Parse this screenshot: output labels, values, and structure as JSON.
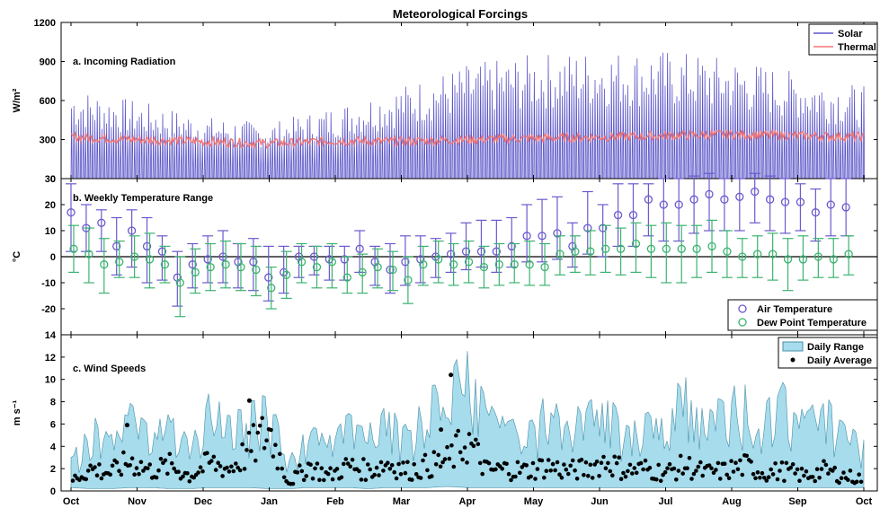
{
  "figure_title": "Meteorological Forcings",
  "months": [
    "Oct",
    "Nov",
    "Dec",
    "Jan",
    "Feb",
    "Mar",
    "Apr",
    "May",
    "Jun",
    "Jul",
    "Aug",
    "Sep",
    "Oct"
  ],
  "chart_data": [
    {
      "type": "line",
      "panel_label": "a. Incoming Radiation",
      "ylabel": "W/m²",
      "ylim": [
        0,
        1200
      ],
      "yticks": [
        0,
        300,
        600,
        900,
        1200
      ],
      "grid": false,
      "legend_position": "top-right",
      "x_unit": "month index (0 = Oct 1, 12 = Oct 1 next year)",
      "series": [
        {
          "name": "Solar",
          "color": "#5b55c8",
          "daily_peak": {
            "x": [
              0,
              1,
              2,
              3,
              4,
              5,
              6,
              7,
              8,
              9,
              10,
              11,
              12
            ],
            "y": [
              700,
              600,
              480,
              430,
              560,
              720,
              880,
              960,
              990,
              990,
              930,
              820,
              710
            ]
          }
        },
        {
          "name": "Thermal",
          "color": "#f27575",
          "daily_mean": {
            "x": [
              0,
              1,
              2,
              3,
              4,
              5,
              6,
              7,
              8,
              9,
              10,
              11,
              12
            ],
            "y": [
              320,
              300,
              285,
              270,
              290,
              285,
              300,
              310,
              320,
              330,
              340,
              330,
              320
            ]
          }
        }
      ]
    },
    {
      "type": "scatter",
      "panel_label": "b. Weekly Temperature Range",
      "ylabel": "°C",
      "ylim": [
        -30,
        30
      ],
      "yticks": [
        -20,
        -10,
        0,
        10,
        20,
        30
      ],
      "zero_line": true,
      "legend_position": "bottom-right",
      "series": [
        {
          "name": "Air Temperature",
          "color": "#6a5acd",
          "x": [
            0,
            0.23,
            0.46,
            0.69,
            0.92,
            1.15,
            1.38,
            1.61,
            1.84,
            2.07,
            2.3,
            2.53,
            2.76,
            2.99,
            3.22,
            3.45,
            3.68,
            3.91,
            4.14,
            4.37,
            4.6,
            4.83,
            5.06,
            5.29,
            5.52,
            5.75,
            5.98,
            6.21,
            6.44,
            6.67,
            6.9,
            7.13,
            7.36,
            7.59,
            7.82,
            8.05,
            8.28,
            8.51,
            8.74,
            8.97,
            9.2,
            9.43,
            9.66,
            9.89,
            10.12,
            10.35,
            10.58,
            10.81,
            11.04,
            11.27,
            11.5,
            11.73
          ],
          "mean": [
            17,
            11,
            13,
            4,
            10,
            4,
            2,
            -8,
            -3,
            -1,
            0,
            -2,
            -2,
            -8,
            -6,
            0,
            0,
            -1,
            -1,
            3,
            -2,
            -5,
            -2,
            -1,
            0,
            1,
            2,
            2,
            2,
            4,
            8,
            8,
            9,
            4,
            11,
            11,
            16,
            16,
            22,
            20,
            20,
            22,
            24,
            22,
            23,
            25,
            22,
            21,
            21,
            17,
            20,
            19
          ],
          "low": [
            2,
            2,
            2,
            -7,
            -4,
            -10,
            -9,
            -19,
            -12,
            -10,
            -10,
            -12,
            -13,
            -17,
            -14,
            -8,
            -7,
            -9,
            -9,
            -6,
            -11,
            -14,
            -11,
            -10,
            -8,
            -6,
            -5,
            -4,
            -6,
            -4,
            -2,
            -2,
            -1,
            -4,
            1,
            0,
            4,
            4,
            8,
            6,
            6,
            9,
            10,
            10,
            10,
            13,
            10,
            9,
            10,
            6,
            8,
            8
          ],
          "high": [
            28,
            20,
            18,
            15,
            18,
            15,
            8,
            2,
            5,
            8,
            10,
            5,
            7,
            4,
            4,
            4,
            4,
            4,
            4,
            10,
            4,
            5,
            8,
            8,
            7,
            9,
            13,
            14,
            14,
            15,
            20,
            22,
            23,
            13,
            25,
            20,
            28,
            28,
            28,
            30,
            30,
            31,
            32,
            30,
            30,
            32,
            31,
            30,
            28,
            26,
            30,
            30
          ]
        },
        {
          "name": "Dew Point Temperature",
          "color": "#3cb371",
          "x": [
            0,
            0.23,
            0.46,
            0.69,
            0.92,
            1.15,
            1.38,
            1.61,
            1.84,
            2.07,
            2.3,
            2.53,
            2.76,
            2.99,
            3.22,
            3.45,
            3.68,
            3.91,
            4.14,
            4.37,
            4.6,
            4.83,
            5.06,
            5.29,
            5.52,
            5.75,
            5.98,
            6.21,
            6.44,
            6.67,
            6.9,
            7.13,
            7.36,
            7.59,
            7.82,
            8.05,
            8.28,
            8.51,
            8.74,
            8.97,
            9.2,
            9.43,
            9.66,
            9.89,
            10.12,
            10.35,
            10.58,
            10.81,
            11.04,
            11.27,
            11.5,
            11.73
          ],
          "mean": [
            3,
            1,
            -3,
            -2,
            0,
            -1,
            -3,
            -10,
            -6,
            -4,
            -3,
            -4,
            -5,
            -12,
            -7,
            -2,
            -4,
            -2,
            -8,
            -6,
            -4,
            -5,
            -9,
            -3,
            -1,
            -3,
            -2,
            -4,
            -3,
            -3,
            -3,
            -4,
            1,
            2,
            2,
            3,
            3,
            5,
            3,
            3,
            3,
            3,
            4,
            2,
            0,
            1,
            1,
            -1,
            -1,
            0,
            -1,
            1
          ],
          "low": [
            -6,
            -10,
            -14,
            -8,
            -8,
            -12,
            -10,
            -23,
            -14,
            -13,
            -12,
            -13,
            -15,
            -20,
            -16,
            -10,
            -12,
            -12,
            -14,
            -14,
            -12,
            -13,
            -18,
            -11,
            -10,
            -11,
            -10,
            -12,
            -11,
            -10,
            -11,
            -11,
            -7,
            -6,
            -7,
            -6,
            -7,
            -6,
            -8,
            -10,
            -10,
            -8,
            -6,
            -8,
            -8,
            -8,
            -9,
            -13,
            -9,
            -8,
            -8,
            -7
          ],
          "high": [
            12,
            11,
            7,
            6,
            8,
            9,
            4,
            0,
            3,
            5,
            6,
            5,
            4,
            -4,
            2,
            5,
            4,
            5,
            0,
            1,
            3,
            2,
            0,
            4,
            6,
            5,
            6,
            4,
            5,
            5,
            6,
            5,
            8,
            8,
            10,
            12,
            11,
            13,
            12,
            13,
            12,
            12,
            14,
            10,
            7,
            8,
            9,
            7,
            8,
            7,
            7,
            8
          ]
        }
      ]
    },
    {
      "type": "area",
      "panel_label": "c. Wind Speeds",
      "ylabel": "m s⁻¹",
      "ylim": [
        0,
        14
      ],
      "yticks": [
        0,
        2,
        4,
        6,
        8,
        10,
        12,
        14
      ],
      "legend_position": "top-right",
      "series": [
        {
          "name": "Daily Range",
          "color": "#a6dcec",
          "x": [
            0,
            0.3,
            0.6,
            0.9,
            1.2,
            1.5,
            1.8,
            2.1,
            2.4,
            2.7,
            3.0,
            3.3,
            3.6,
            3.9,
            4.2,
            4.5,
            4.8,
            5.1,
            5.4,
            5.7,
            6.0,
            6.3,
            6.6,
            6.9,
            7.2,
            7.5,
            7.8,
            8.1,
            8.4,
            8.7,
            9.0,
            9.3,
            9.6,
            9.9,
            10.2,
            10.5,
            10.8,
            11.1,
            11.4,
            11.7,
            12
          ],
          "low": [
            0.3,
            0.2,
            0.2,
            0.3,
            0.3,
            0.2,
            0.2,
            0.3,
            0.3,
            0.3,
            0.2,
            0.2,
            0.3,
            0.3,
            0.3,
            0.2,
            0.3,
            0.3,
            0.3,
            0.4,
            0.3,
            0.3,
            0.3,
            0.3,
            0.3,
            0.3,
            0.3,
            0.3,
            0.3,
            0.3,
            0.3,
            0.3,
            0.3,
            0.3,
            0.3,
            0.3,
            0.3,
            0.3,
            0.3,
            0.3,
            0.3
          ],
          "high": [
            3,
            7,
            5,
            8,
            6,
            7,
            5,
            9,
            7,
            8,
            9,
            3,
            6,
            5,
            7,
            6,
            8,
            6,
            9,
            11,
            13,
            8,
            7,
            6,
            9,
            7,
            8,
            9,
            6,
            7,
            8,
            11,
            7,
            9,
            10,
            8,
            10,
            7,
            9,
            6,
            5
          ]
        },
        {
          "name": "Daily Average",
          "color": "#000000",
          "x": [
            0,
            0.3,
            0.6,
            0.9,
            1.2,
            1.5,
            1.8,
            2.1,
            2.4,
            2.7,
            3.0,
            3.3,
            3.6,
            3.9,
            4.2,
            4.5,
            4.8,
            5.1,
            5.4,
            5.7,
            6.0,
            6.3,
            6.6,
            6.9,
            7.2,
            7.5,
            7.8,
            8.1,
            8.4,
            8.7,
            9.0,
            9.3,
            9.6,
            9.9,
            10.2,
            10.5,
            10.8,
            11.1,
            11.4,
            11.7,
            12
          ],
          "y": [
            1.0,
            2.2,
            1.8,
            3.0,
            2.0,
            2.5,
            1.5,
            2.8,
            2.2,
            4.0,
            6.0,
            0.8,
            2.5,
            1.5,
            2.5,
            2.0,
            2.8,
            2.0,
            2.5,
            3.0,
            5.0,
            2.0,
            2.2,
            2.0,
            2.5,
            2.0,
            2.2,
            3.0,
            2.0,
            2.2,
            1.8,
            2.5,
            1.8,
            2.0,
            2.5,
            1.8,
            2.0,
            1.5,
            2.0,
            1.5,
            1.2
          ],
          "peaks": [
            {
              "x": 0.85,
              "y": 5.9
            },
            {
              "x": 2.7,
              "y": 8.1
            },
            {
              "x": 5.75,
              "y": 10.4
            },
            {
              "x": 5.6,
              "y": 5.5
            }
          ]
        }
      ]
    }
  ]
}
